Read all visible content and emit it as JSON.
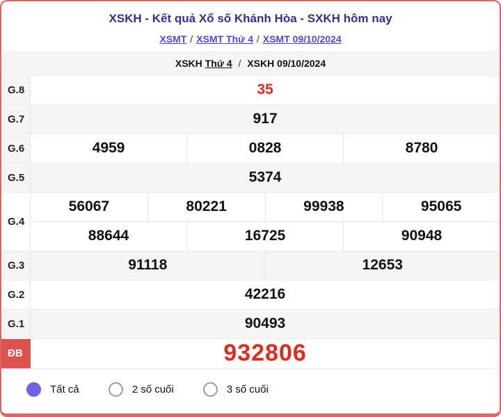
{
  "header": {
    "title": "XSKH - Kết quả Xổ số Khánh Hòa - SXKH hôm nay",
    "breadcrumb_top": {
      "link_region": "XSMT",
      "link_day": "XSMT Thứ 4",
      "link_date": "XSMT 09/10/2024",
      "separator": "/"
    },
    "breadcrumb_sub": {
      "link_station": "XSKH",
      "day_text": "Thứ 4",
      "link_date": "XSKH 09/10/2024",
      "separator": "/"
    }
  },
  "results": {
    "rows": [
      {
        "label": "G.8",
        "groups": [
          [
            "35"
          ]
        ],
        "highlight": true
      },
      {
        "label": "G.7",
        "groups": [
          [
            "917"
          ]
        ]
      },
      {
        "label": "G.6",
        "groups": [
          [
            "4959",
            "0828",
            "8780"
          ]
        ]
      },
      {
        "label": "G.5",
        "groups": [
          [
            "5374"
          ]
        ]
      },
      {
        "label": "G.4",
        "groups": [
          [
            "56067",
            "80221",
            "99938",
            "95065"
          ],
          [
            "88644",
            "16725",
            "90948"
          ]
        ]
      },
      {
        "label": "G.3",
        "groups": [
          [
            "91118",
            "12653"
          ]
        ]
      },
      {
        "label": "G.2",
        "groups": [
          [
            "42216"
          ]
        ]
      },
      {
        "label": "G.1",
        "groups": [
          [
            "90493"
          ]
        ]
      },
      {
        "label": "ĐB",
        "groups": [
          [
            "932806"
          ]
        ],
        "highlight": true,
        "jackpot": true
      }
    ]
  },
  "filters": {
    "options": [
      {
        "label": "Tất cả",
        "selected": true
      },
      {
        "label": "2 số cuối",
        "selected": false
      },
      {
        "label": "3 số cuối",
        "selected": false
      }
    ]
  },
  "colors": {
    "card_border": "#e06161",
    "title_navy": "#32328c",
    "link_purple": "#4b4bd8",
    "highlight_red": "#e02b20",
    "jackpot_label_bg": "#d9534f",
    "stripe_gray": "#f5f5f5",
    "radio_selected_purple": "#6e63e6"
  }
}
